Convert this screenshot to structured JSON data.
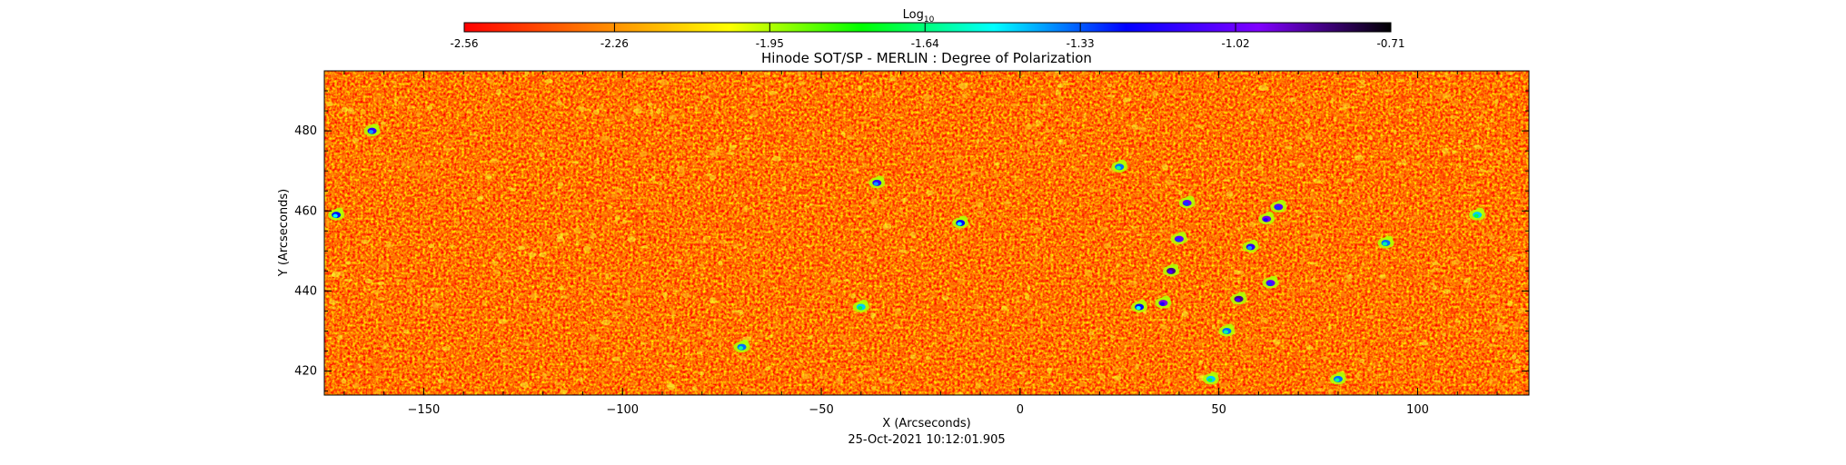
{
  "chart_data": {
    "type": "heatmap",
    "title": "Hinode SOT/SP - MERLIN : Degree of Polarization",
    "xlabel": "X (Arcseconds)",
    "ylabel": "Y (Arcseconds)",
    "timestamp": "25-Oct-2021 10:12:01.905",
    "xlim": [
      -175,
      128
    ],
    "ylim": [
      414,
      495
    ],
    "x_ticks": [
      -150,
      -100,
      -50,
      0,
      50,
      100
    ],
    "y_ticks": [
      420,
      440,
      460,
      480
    ],
    "colorbar": {
      "label_base": "Log",
      "label_sub": "10",
      "range": [
        -2.56,
        -0.71
      ],
      "tick_values": [
        -2.56,
        -2.26,
        -1.95,
        -1.64,
        -1.33,
        -1.02,
        -0.71
      ],
      "tick_labels": [
        "-2.56",
        "-2.26",
        "-1.95",
        "-1.64",
        "-1.33",
        "-1.02",
        "-0.71"
      ],
      "colormap": [
        "#ff0000",
        "#ff8000",
        "#ffff00",
        "#00ff00",
        "#00ffff",
        "#0000ff",
        "#8000ff",
        "#000000"
      ]
    },
    "background_colors": [
      "#ff3c00",
      "#ff6a00",
      "#ff9a10",
      "#ffd020",
      "#f8ff30"
    ],
    "features": [
      {
        "x": 38,
        "y": 445,
        "level": -1.1
      },
      {
        "x": 36,
        "y": 437,
        "level": -1.2
      },
      {
        "x": 40,
        "y": 453,
        "level": -1.3
      },
      {
        "x": 62,
        "y": 458,
        "level": -1.2
      },
      {
        "x": 58,
        "y": 451,
        "level": -1.4
      },
      {
        "x": 63,
        "y": 442,
        "level": -1.3
      },
      {
        "x": 55,
        "y": 438,
        "level": -1.1
      },
      {
        "x": 42,
        "y": 462,
        "level": -1.3
      },
      {
        "x": -163,
        "y": 480,
        "level": -1.4
      },
      {
        "x": -172,
        "y": 459,
        "level": -1.5
      },
      {
        "x": -36,
        "y": 467,
        "level": -1.4
      },
      {
        "x": -15,
        "y": 457,
        "level": -1.5
      },
      {
        "x": -70,
        "y": 426,
        "level": -1.6
      },
      {
        "x": 30,
        "y": 436,
        "level": -1.5
      },
      {
        "x": 25,
        "y": 471,
        "level": -1.6
      },
      {
        "x": 92,
        "y": 452,
        "level": -1.6
      },
      {
        "x": 115,
        "y": 459,
        "level": -1.7
      },
      {
        "x": -40,
        "y": 436,
        "level": -1.7
      },
      {
        "x": 48,
        "y": 418,
        "level": -1.7
      },
      {
        "x": 80,
        "y": 418,
        "level": -1.6
      },
      {
        "x": 65,
        "y": 461,
        "level": -1.3
      },
      {
        "x": 52,
        "y": 430,
        "level": -1.6
      }
    ]
  }
}
